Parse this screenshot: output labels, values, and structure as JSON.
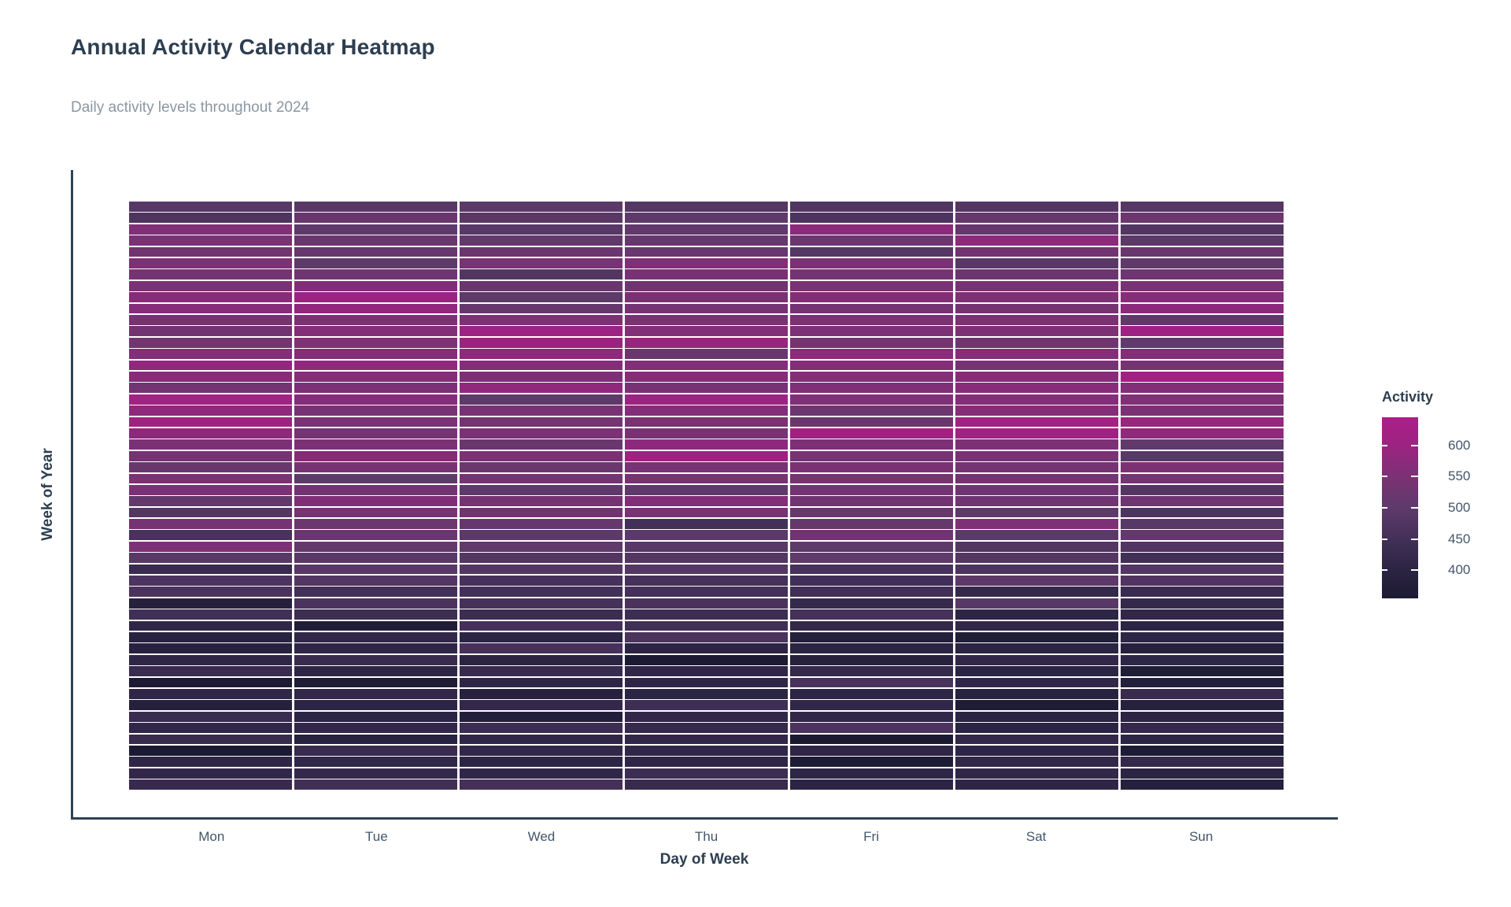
{
  "header": {
    "title": "Annual Activity Calendar Heatmap",
    "subtitle": "Daily activity levels throughout 2024"
  },
  "axes": {
    "x_title": "Day of Week",
    "y_title": "Week of Year",
    "x_tick_labels": [
      "Mon",
      "Tue",
      "Wed",
      "Thu",
      "Fri",
      "Sat",
      "Sun"
    ],
    "y_tick_labels": []
  },
  "legend": {
    "title": "Activity",
    "tick_values": [
      600,
      550,
      500,
      450,
      400
    ]
  },
  "colors": {
    "background": "#ffffff",
    "title_text": "#2d3e50",
    "subtitle_text": "#8b97a3",
    "tick_text": "#44566a",
    "spine": "#2e4157",
    "colormap_low": "#1c1a32",
    "colormap_high": "#ad1e88"
  },
  "chart_data": {
    "type": "heatmap",
    "title": "Annual Activity Calendar Heatmap",
    "subtitle": "Daily activity levels throughout 2024",
    "xlabel": "Day of Week",
    "ylabel": "Week of Year",
    "x_categories": [
      "Mon",
      "Tue",
      "Wed",
      "Thu",
      "Fri",
      "Sat",
      "Sun"
    ],
    "rows": 52,
    "row_meaning": "week of year, week 1 at top through week 52 at bottom",
    "legend_title": "Activity",
    "legend_position": "right",
    "legend_ticks": [
      600,
      550,
      500,
      450,
      400
    ],
    "color_domain": [
      355,
      645
    ],
    "colormap": [
      {
        "t": 0.0,
        "color": "#1c1a32"
      },
      {
        "t": 0.155,
        "color": "#2b2443"
      },
      {
        "t": 0.327,
        "color": "#433058"
      },
      {
        "t": 0.5,
        "color": "#5e3a6a"
      },
      {
        "t": 0.673,
        "color": "#7c3175"
      },
      {
        "t": 0.845,
        "color": "#9c2381"
      },
      {
        "t": 1.0,
        "color": "#ad1e88"
      }
    ],
    "grid": false,
    "values": [
      [
        488,
        490,
        494,
        484,
        478,
        480,
        486
      ],
      [
        470,
        522,
        490,
        500,
        468,
        510,
        524
      ],
      [
        558,
        500,
        488,
        505,
        570,
        514,
        478
      ],
      [
        545,
        520,
        506,
        514,
        526,
        575,
        494
      ],
      [
        530,
        515,
        520,
        516,
        484,
        532,
        519
      ],
      [
        550,
        500,
        545,
        556,
        545,
        490,
        501
      ],
      [
        536,
        529,
        478,
        544,
        536,
        521,
        526
      ],
      [
        549,
        560,
        520,
        526,
        546,
        540,
        541
      ],
      [
        564,
        594,
        499,
        542,
        556,
        550,
        561
      ],
      [
        566,
        581,
        514,
        540,
        539,
        538,
        574
      ],
      [
        540,
        549,
        551,
        541,
        549,
        546,
        504
      ],
      [
        531,
        559,
        601,
        559,
        549,
        551,
        605
      ],
      [
        536,
        558,
        595,
        589,
        539,
        534,
        506
      ],
      [
        561,
        563,
        579,
        519,
        576,
        566,
        559
      ],
      [
        585,
        584,
        564,
        561,
        565,
        540,
        538
      ],
      [
        564,
        559,
        549,
        559,
        558,
        566,
        609
      ],
      [
        535,
        549,
        584,
        544,
        555,
        569,
        561
      ],
      [
        621,
        570,
        498,
        604,
        563,
        566,
        558
      ],
      [
        578,
        541,
        545,
        561,
        524,
        564,
        549
      ],
      [
        608,
        549,
        539,
        547,
        521,
        617,
        594
      ],
      [
        577,
        539,
        549,
        544,
        607,
        600,
        578
      ],
      [
        548,
        551,
        518,
        577,
        554,
        549,
        501
      ],
      [
        539,
        556,
        551,
        604,
        541,
        547,
        488
      ],
      [
        519,
        544,
        524,
        541,
        547,
        539,
        551
      ],
      [
        547,
        499,
        540,
        544,
        539,
        537,
        540
      ],
      [
        548,
        531,
        498,
        500,
        537,
        529,
        481
      ],
      [
        505,
        557,
        538,
        557,
        531,
        527,
        529
      ],
      [
        479,
        539,
        531,
        541,
        517,
        500,
        471
      ],
      [
        539,
        524,
        514,
        449,
        511,
        554,
        489
      ],
      [
        461,
        519,
        497,
        494,
        534,
        494,
        509
      ],
      [
        554,
        509,
        501,
        491,
        499,
        481,
        477
      ],
      [
        489,
        491,
        479,
        479,
        502,
        479,
        447
      ],
      [
        429,
        491,
        479,
        484,
        457,
        469,
        482
      ],
      [
        469,
        479,
        457,
        454,
        447,
        496,
        475
      ],
      [
        464,
        449,
        449,
        452,
        447,
        419,
        429
      ],
      [
        384,
        464,
        454,
        462,
        421,
        489,
        419
      ],
      [
        444,
        439,
        434,
        439,
        454,
        404,
        414
      ],
      [
        411,
        367,
        452,
        444,
        417,
        414,
        404
      ],
      [
        389,
        414,
        399,
        464,
        379,
        371,
        407
      ],
      [
        391,
        409,
        457,
        399,
        401,
        399,
        387
      ],
      [
        409,
        429,
        399,
        354,
        387,
        414,
        407
      ],
      [
        431,
        406,
        429,
        411,
        421,
        401,
        367
      ],
      [
        357,
        364,
        409,
        409,
        461,
        411,
        379
      ],
      [
        411,
        414,
        387,
        401,
        405,
        389,
        427
      ],
      [
        384,
        405,
        417,
        441,
        412,
        364,
        385
      ],
      [
        431,
        402,
        377,
        414,
        414,
        399,
        401
      ],
      [
        411,
        414,
        436,
        421,
        469,
        399,
        419
      ],
      [
        427,
        389,
        411,
        414,
        351,
        417,
        405
      ],
      [
        355,
        427,
        413,
        411,
        409,
        404,
        361
      ],
      [
        409,
        412,
        405,
        409,
        361,
        411,
        419
      ],
      [
        414,
        419,
        411,
        437,
        407,
        413,
        399
      ],
      [
        425,
        445,
        451,
        427,
        399,
        409,
        383
      ]
    ]
  }
}
